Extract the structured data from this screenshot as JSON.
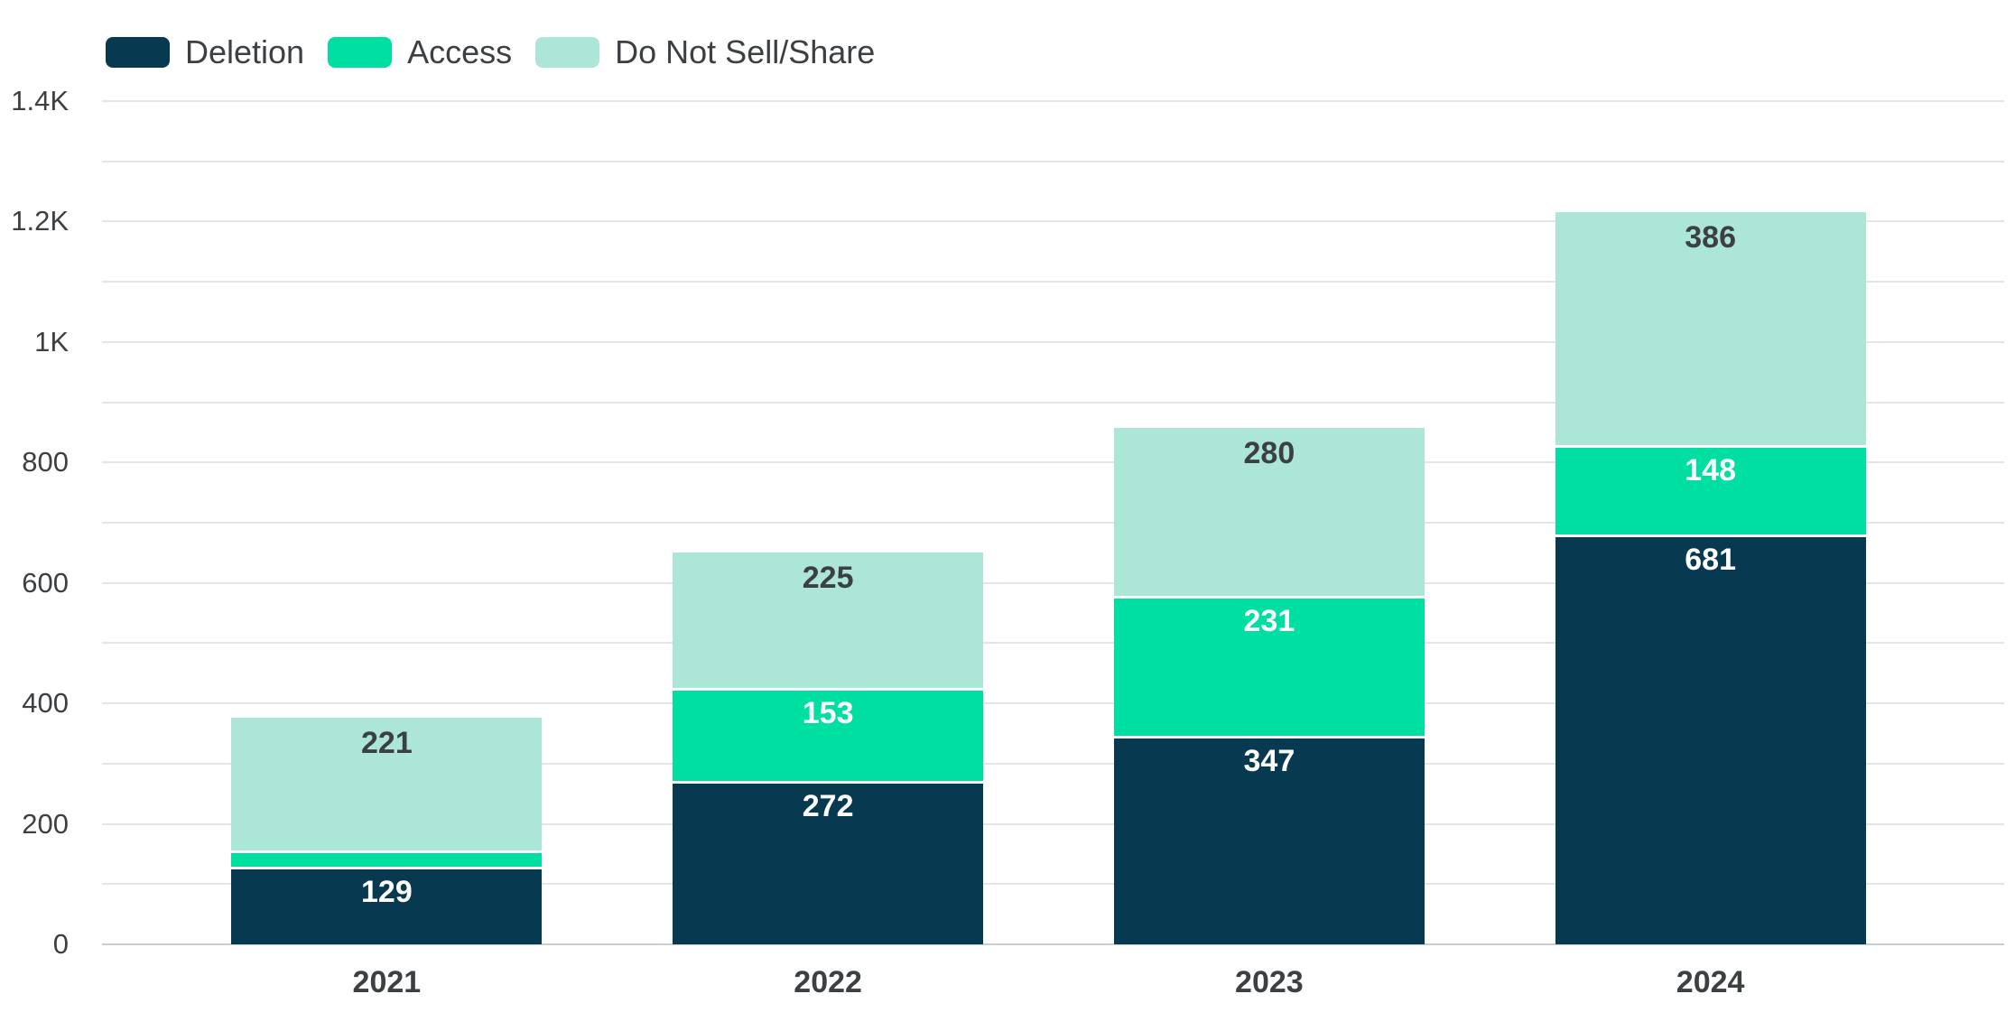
{
  "chart_data": {
    "type": "bar",
    "stacked": true,
    "categories": [
      "2021",
      "2022",
      "2023",
      "2024"
    ],
    "series": [
      {
        "name": "Deletion",
        "color": "#073A50",
        "label_color": "#FFFFFF",
        "values": [
          129,
          272,
          347,
          681
        ]
      },
      {
        "name": "Access",
        "color": "#00DFA2",
        "label_color": "#FFFFFF",
        "values": [
          27,
          153,
          231,
          148
        ]
      },
      {
        "name": "Do Not Sell/Share",
        "color": "#ACE6D7",
        "label_color": "#3C4043",
        "values": [
          221,
          225,
          280,
          386
        ]
      }
    ],
    "ylim": [
      0,
      1400
    ],
    "y_minor_step": 100,
    "y_tick_labels": [
      "0",
      "200",
      "400",
      "600",
      "800",
      "1K",
      "1.2K",
      "1.4K"
    ],
    "grid": "horizontal",
    "legend_position": "top-left",
    "callout": {
      "category": "2021",
      "series": "Access",
      "value": 27,
      "text_color": "#10D08E",
      "line_color": "#9AA0A6"
    },
    "colors": {
      "background": "#FFFFFF",
      "gridline": "#E4E5E7",
      "baseline": "#C9CDD0",
      "axis_text": "#3C4043"
    }
  }
}
